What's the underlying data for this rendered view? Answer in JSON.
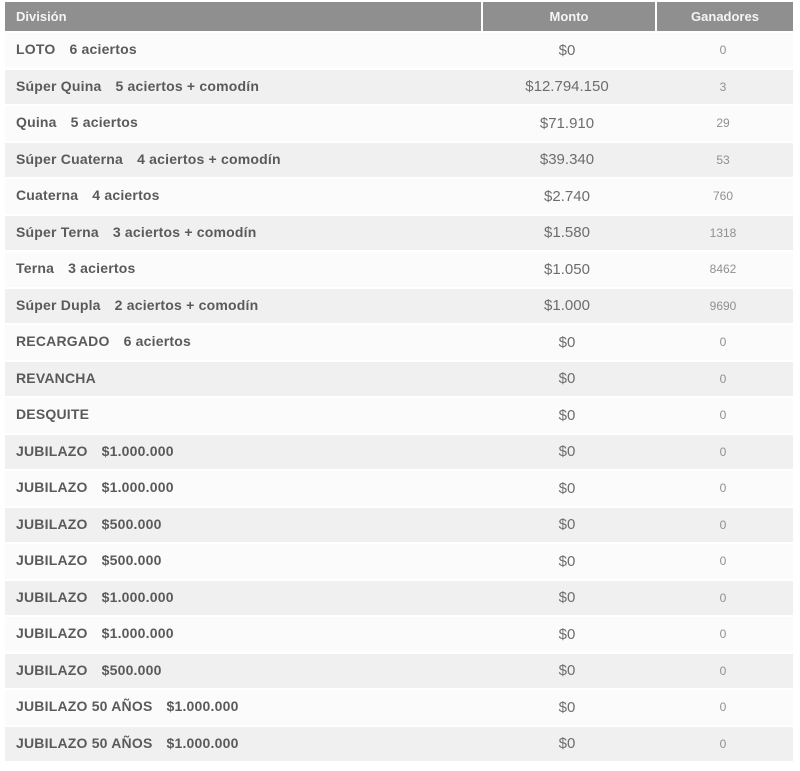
{
  "table": {
    "header": {
      "division": "División",
      "monto": "Monto",
      "ganadores": "Ganadores"
    },
    "rows": [
      {
        "division": "LOTO",
        "detail": "6 aciertos",
        "monto": "$0",
        "ganadores": "0"
      },
      {
        "division": "Súper Quina",
        "detail": "5 aciertos + comodín",
        "monto": "$12.794.150",
        "ganadores": "3"
      },
      {
        "division": "Quina",
        "detail": "5 aciertos",
        "monto": "$71.910",
        "ganadores": "29"
      },
      {
        "division": "Súper Cuaterna",
        "detail": "4 aciertos + comodín",
        "monto": "$39.340",
        "ganadores": "53"
      },
      {
        "division": "Cuaterna",
        "detail": "4 aciertos",
        "monto": "$2.740",
        "ganadores": "760"
      },
      {
        "division": "Súper Terna",
        "detail": "3 aciertos + comodín",
        "monto": "$1.580",
        "ganadores": "1318"
      },
      {
        "division": "Terna",
        "detail": "3 aciertos",
        "monto": "$1.050",
        "ganadores": "8462"
      },
      {
        "division": "Súper Dupla",
        "detail": "2 aciertos + comodín",
        "monto": "$1.000",
        "ganadores": "9690"
      },
      {
        "division": "RECARGADO",
        "detail": "6 aciertos",
        "monto": "$0",
        "ganadores": "0"
      },
      {
        "division": "REVANCHA",
        "detail": "",
        "monto": "$0",
        "ganadores": "0"
      },
      {
        "division": "DESQUITE",
        "detail": "",
        "monto": "$0",
        "ganadores": "0"
      },
      {
        "division": "JUBILAZO",
        "detail": "$1.000.000",
        "monto": "$0",
        "ganadores": "0"
      },
      {
        "division": "JUBILAZO",
        "detail": "$1.000.000",
        "monto": "$0",
        "ganadores": "0"
      },
      {
        "division": "JUBILAZO",
        "detail": "$500.000",
        "monto": "$0",
        "ganadores": "0"
      },
      {
        "division": "JUBILAZO",
        "detail": "$500.000",
        "monto": "$0",
        "ganadores": "0"
      },
      {
        "division": "JUBILAZO",
        "detail": "$1.000.000",
        "monto": "$0",
        "ganadores": "0"
      },
      {
        "division": "JUBILAZO",
        "detail": "$1.000.000",
        "monto": "$0",
        "ganadores": "0"
      },
      {
        "division": "JUBILAZO",
        "detail": "$500.000",
        "monto": "$0",
        "ganadores": "0"
      },
      {
        "division": "JUBILAZO 50 AÑOS",
        "detail": "$1.000.000",
        "monto": "$0",
        "ganadores": "0"
      },
      {
        "division": "JUBILAZO 50 AÑOS",
        "detail": "$1.000.000",
        "monto": "$0",
        "ganadores": "0"
      }
    ],
    "colors": {
      "header_bg": "#8f8f8f",
      "header_text": "#f4f4f4",
      "row_light": "#fbfbfb",
      "row_dark": "#f0f0f0",
      "division_text": "#5a5a5a",
      "monto_text": "#6d6d6d",
      "ganadores_text": "#909090"
    }
  }
}
